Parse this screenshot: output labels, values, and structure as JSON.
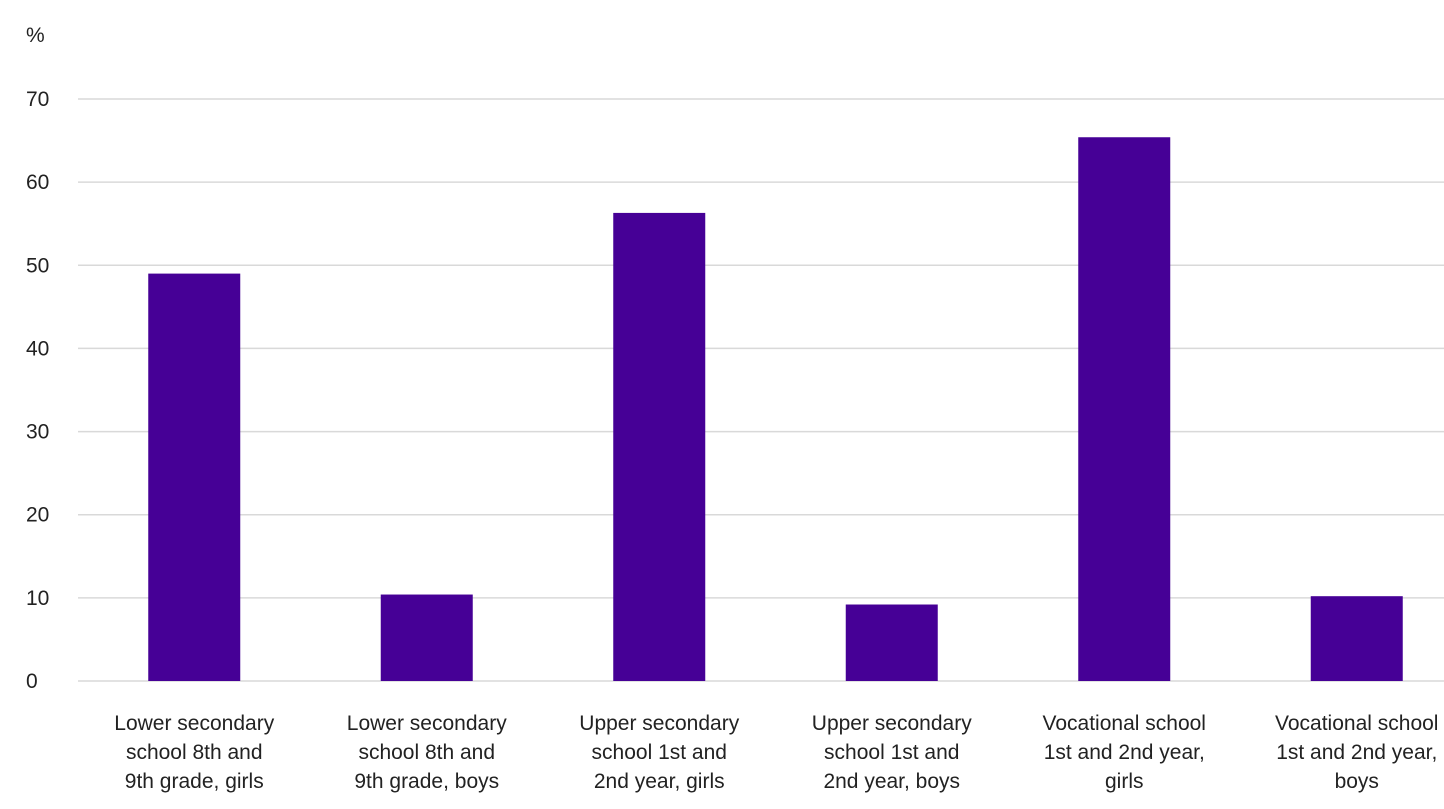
{
  "chart_data": {
    "type": "bar",
    "title": "",
    "xlabel": "",
    "ylabel": "%",
    "ylim": [
      0,
      70
    ],
    "yticks": [
      0,
      10,
      20,
      30,
      40,
      50,
      60,
      70
    ],
    "grid": true,
    "categories": [
      "Lower secondary school 8th and 9th grade, girls",
      "Lower secondary school 8th and 9th grade, boys",
      "Upper secondary school 1st and 2nd year, girls",
      "Upper secondary school 1st and 2nd year, boys",
      "Vocational school 1st and 2nd year, girls",
      "Vocational school 1st and 2nd year, boys"
    ],
    "category_lines": [
      [
        "Lower secondary",
        "school 8th and",
        "9th grade, girls"
      ],
      [
        "Lower secondary",
        "school 8th and",
        "9th grade, boys"
      ],
      [
        "Upper secondary",
        "school 1st and",
        "2nd year, girls"
      ],
      [
        "Upper secondary",
        "school 1st and",
        "2nd year, boys"
      ],
      [
        "Vocational school",
        "1st and 2nd year,",
        "girls"
      ],
      [
        "Vocational school",
        "1st and 2nd year,",
        "boys"
      ]
    ],
    "values": [
      49,
      10.4,
      56.3,
      9.2,
      65.4,
      10.2
    ],
    "bar_color": "#460096",
    "grid_color": "#d9d9d9"
  }
}
